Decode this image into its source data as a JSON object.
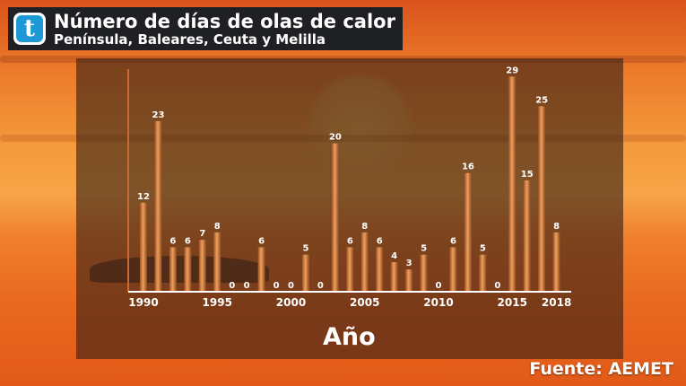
{
  "header": {
    "logo_letter": "t",
    "title": "Número de días de olas de calor",
    "subtitle": "Península, Baleares, Ceuta y Melilla"
  },
  "source": "Fuente: AEMET",
  "colors": {
    "bar": "#e8914a",
    "bar_dark": "#8a4a22",
    "axis": "#ffffff",
    "panel": "#301c14",
    "logo": "#1d9ad6"
  },
  "chart_data": {
    "type": "bar",
    "title": "",
    "xlabel": "Año",
    "ylabel": "",
    "x": [
      1990,
      1991,
      1992,
      1993,
      1994,
      1995,
      1996,
      1997,
      1998,
      1999,
      2000,
      2001,
      2002,
      2003,
      2004,
      2005,
      2006,
      2007,
      2008,
      2009,
      2010,
      2011,
      2012,
      2013,
      2014,
      2015,
      2016,
      2017,
      2018
    ],
    "values": [
      12,
      23,
      6,
      6,
      7,
      8,
      0,
      0,
      6,
      0,
      0,
      5,
      0,
      20,
      6,
      8,
      6,
      4,
      3,
      5,
      0,
      6,
      16,
      5,
      0,
      29,
      15,
      25,
      8
    ],
    "xtick_labels": [
      "1990",
      "1995",
      "2000",
      "2005",
      "2010",
      "2015",
      "2018"
    ],
    "ylim": [
      0,
      30
    ],
    "data_labels": true,
    "grid": false
  }
}
